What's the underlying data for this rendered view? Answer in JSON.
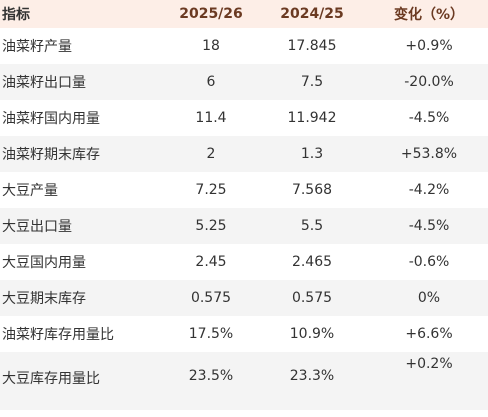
{
  "headers": [
    "指标",
    "2025/26",
    "2024/25",
    "变化（%）"
  ],
  "rows": [
    [
      "油菜籽产量",
      "18",
      "17.845",
      "+0.9%"
    ],
    [
      "油菜籽出口量",
      "6",
      "7.5",
      "-20.0%"
    ],
    [
      "油菜籽国内用量",
      "11.4",
      "11.942",
      "-4.5%"
    ],
    [
      "油菜籽期末库存",
      "2",
      "1.3",
      "+53.8%"
    ],
    [
      "大豆产量",
      "7.25",
      "7.568",
      "-4.2%"
    ],
    [
      "大豆出口量",
      "5.25",
      "5.5",
      "-4.5%"
    ],
    [
      "大豆国内用量",
      "2.45",
      "2.465",
      "-0.6%"
    ],
    [
      "大豆期末库存",
      "0.575",
      "0.575",
      "0%"
    ],
    [
      "油菜籽库存用量比",
      "17.5%",
      "10.9%",
      "+6.6%"
    ],
    [
      "大豆库存用量比",
      "23.5%",
      "23.3%",
      "+0.2%"
    ]
  ]
}
